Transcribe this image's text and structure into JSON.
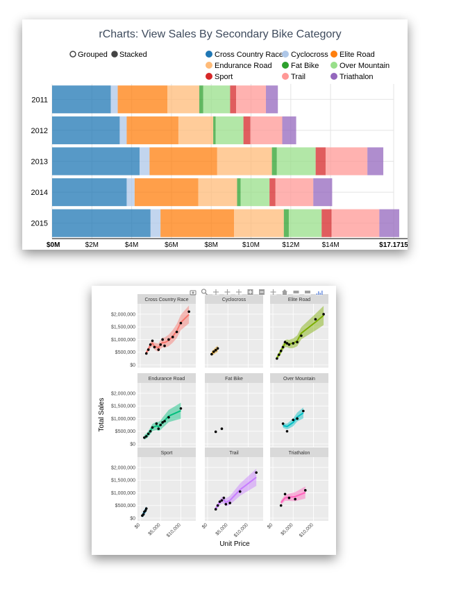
{
  "bar_chart": {
    "title": "rCharts: View Sales By Secondary Bike Category",
    "controls": [
      {
        "label": "Grouped",
        "selected": false
      },
      {
        "label": "Stacked",
        "selected": true
      }
    ],
    "legend": [
      {
        "name": "Cross Country Race",
        "color": "#1f77b4"
      },
      {
        "name": "Cyclocross",
        "color": "#aec7e8"
      },
      {
        "name": "Elite Road",
        "color": "#ff7f0e"
      },
      {
        "name": "Endurance Road",
        "color": "#ffbb78"
      },
      {
        "name": "Fat Bike",
        "color": "#2ca02c"
      },
      {
        "name": "Over Mountain",
        "color": "#98df8a"
      },
      {
        "name": "Sport",
        "color": "#d62728"
      },
      {
        "name": "Trail",
        "color": "#ff9896"
      },
      {
        "name": "Triathalon",
        "color": "#9467bd"
      }
    ]
  },
  "facet_plot": {
    "ylabel": "Total Sales",
    "xlabel": "Unit Price",
    "ytick_labels": [
      "$0",
      "$500,000",
      "$1,000,000",
      "$1,500,000",
      "$2,000,000"
    ],
    "xtick_labels": [
      "$0",
      "$5,000",
      "$10,000"
    ],
    "panel_colors": [
      "#f8766d",
      "#d89000",
      "#7cae00",
      "#00bf7d",
      "#39b600",
      "#00bfc4",
      "#00b0f6",
      "#c77cff",
      "#ff62bc"
    ],
    "toolbar_icons": [
      "camera-icon",
      "zoom-icon",
      "pan-icon",
      "box-select-icon",
      "lasso-icon",
      "zoom-in-icon",
      "zoom-out-icon",
      "autoscale-icon",
      "home-icon",
      "hover-closest-icon",
      "hover-compare-icon",
      "plotly-logo-icon"
    ]
  },
  "chart_data": [
    {
      "type": "bar",
      "orientation": "horizontal",
      "stacked": true,
      "title": "rCharts: View Sales By Secondary Bike Category",
      "categories": [
        "2011",
        "2012",
        "2013",
        "2014",
        "2015"
      ],
      "xlim": [
        0,
        17.1715
      ],
      "x_units": "millions of dollars",
      "xtick_labels": [
        "$0M",
        "$2M",
        "$4M",
        "$6M",
        "$8M",
        "$10M",
        "$12M",
        "$14M",
        "$17.1715"
      ],
      "grid": true,
      "legend_position": "top",
      "series": [
        {
          "name": "Cross Country Race",
          "values": [
            2.95,
            3.4,
            4.4,
            3.75,
            4.95
          ]
        },
        {
          "name": "Cyclocross",
          "values": [
            0.35,
            0.35,
            0.5,
            0.4,
            0.5
          ]
        },
        {
          "name": "Elite Road",
          "values": [
            2.5,
            2.6,
            3.4,
            3.2,
            3.7
          ]
        },
        {
          "name": "Endurance Road",
          "values": [
            1.6,
            1.75,
            2.75,
            1.95,
            2.5
          ]
        },
        {
          "name": "Fat Bike",
          "values": [
            0.2,
            0.12,
            0.25,
            0.18,
            0.25
          ]
        },
        {
          "name": "Over Mountain",
          "values": [
            1.35,
            1.4,
            1.95,
            1.45,
            1.65
          ]
        },
        {
          "name": "Sport",
          "values": [
            0.3,
            0.35,
            0.5,
            0.3,
            0.5
          ]
        },
        {
          "name": "Trail",
          "values": [
            1.5,
            1.6,
            2.1,
            1.9,
            2.4
          ]
        },
        {
          "name": "Triathalon",
          "values": [
            0.6,
            0.7,
            0.8,
            0.95,
            1.0
          ]
        }
      ]
    },
    {
      "type": "scatter",
      "title": "",
      "xlabel": "Unit Price",
      "ylabel": "Total Sales",
      "xlim": [
        0,
        13000
      ],
      "ylim": [
        0,
        2300000
      ],
      "facets": [
        {
          "name": "Cross Country Race",
          "x": [
            1500,
            2000,
            2500,
            3000,
            3500,
            4500,
            5000,
            5500,
            6000,
            7000,
            8000,
            9000,
            10000,
            12000
          ],
          "y": [
            450000,
            600000,
            800000,
            950000,
            700000,
            600000,
            800000,
            1000000,
            750000,
            1000000,
            1100000,
            1300000,
            1650000,
            2100000
          ]
        },
        {
          "name": "Cyclocross",
          "x": [
            1000,
            1500,
            2000,
            2500
          ],
          "y": [
            420000,
            520000,
            580000,
            650000
          ]
        },
        {
          "name": "Elite Road",
          "x": [
            1000,
            1500,
            2000,
            2500,
            3000,
            3500,
            4000,
            5000,
            6000,
            7000,
            10500,
            12500
          ],
          "y": [
            250000,
            400000,
            550000,
            700000,
            900000,
            850000,
            800000,
            850000,
            900000,
            1150000,
            1800000,
            2000000
          ]
        },
        {
          "name": "Endurance Road",
          "x": [
            1000,
            1500,
            2000,
            2500,
            3000,
            4000,
            4500,
            5000,
            5500,
            6000,
            7000,
            10000
          ],
          "y": [
            250000,
            300000,
            400000,
            500000,
            650000,
            800000,
            600000,
            750000,
            850000,
            900000,
            1050000,
            1400000
          ]
        },
        {
          "name": "Fat Bike",
          "x": [
            2000,
            3500
          ],
          "y": [
            480000,
            600000
          ]
        },
        {
          "name": "Over Mountain",
          "x": [
            2500,
            3500,
            5000,
            6000,
            7500
          ],
          "y": [
            800000,
            500000,
            950000,
            1000000,
            1300000
          ]
        },
        {
          "name": "Sport",
          "x": [
            500,
            800,
            1000,
            1300,
            1500
          ],
          "y": [
            100000,
            150000,
            250000,
            300000,
            380000
          ]
        },
        {
          "name": "Trail",
          "x": [
            2000,
            2500,
            3000,
            3500,
            4000,
            4500,
            5500,
            8000,
            12000
          ],
          "y": [
            350000,
            500000,
            650000,
            700000,
            800000,
            550000,
            600000,
            1050000,
            1800000
          ]
        },
        {
          "name": "Triathalon",
          "x": [
            2000,
            3000,
            4000,
            5500,
            8000
          ],
          "y": [
            500000,
            950000,
            800000,
            750000,
            1100000
          ]
        }
      ]
    }
  ]
}
